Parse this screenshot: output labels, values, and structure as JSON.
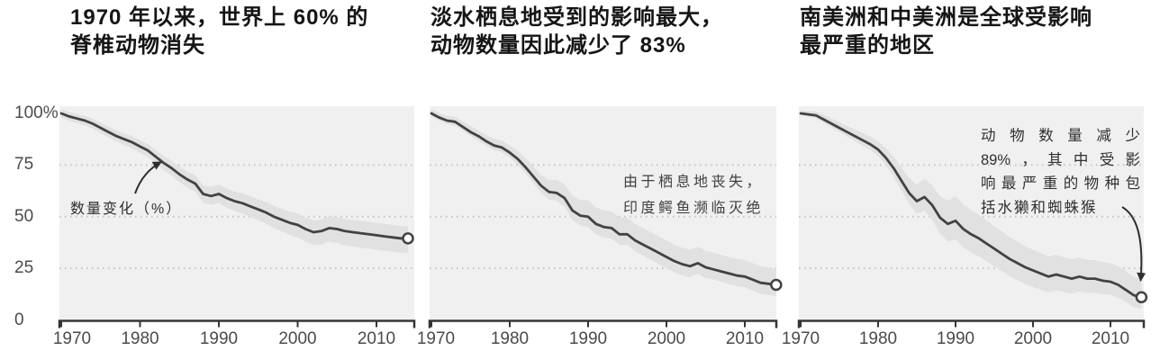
{
  "colors": {
    "plot_bg": "#f0f0f0",
    "band": "#e1e1e1",
    "line": "#424242",
    "grid": "#c3c3c3",
    "axis": "#353535",
    "title_text": "#151515",
    "label_text": "#4b4b4b",
    "annotation_text": "#2f2f2f",
    "endpoint_fill": "#ffffff"
  },
  "y_axis": {
    "tick_labels": [
      "100%",
      "75",
      "50",
      "25",
      "0"
    ],
    "tick_values": [
      100,
      75,
      50,
      25,
      0
    ]
  },
  "x_axis": {
    "tick_labels": [
      "1970",
      "1980",
      "1990",
      "2000",
      "2010"
    ],
    "tick_values": [
      1970,
      1980,
      1990,
      2000,
      2010
    ]
  },
  "chart_data": [
    {
      "type": "line",
      "title_line1": "1970 年以来，世界上 60% 的",
      "title_line2": "脊椎动物消失",
      "decline_pct": 60,
      "end_index_pct": 39.5,
      "ylim": [
        0,
        100
      ],
      "x_range": [
        1970,
        2014
      ],
      "grid": "dotted",
      "annotation_lines": [
        "数量变化（%）"
      ],
      "years": [
        1970,
        1971,
        1972,
        1973,
        1974,
        1975,
        1976,
        1977,
        1978,
        1979,
        1980,
        1981,
        1982,
        1983,
        1984,
        1985,
        1986,
        1987,
        1988,
        1989,
        1990,
        1991,
        1992,
        1993,
        1994,
        1995,
        1996,
        1997,
        1998,
        1999,
        2000,
        2001,
        2002,
        2003,
        2004,
        2005,
        2006,
        2007,
        2008,
        2009,
        2010,
        2011,
        2012,
        2013,
        2014
      ],
      "values": [
        100,
        98.5,
        97.5,
        96.5,
        95,
        93,
        91,
        89,
        87.5,
        86,
        84,
        82,
        79,
        76,
        73.5,
        70.5,
        68,
        66,
        61,
        60,
        61,
        59,
        57.5,
        56.5,
        55,
        53.5,
        52,
        50,
        48.5,
        47,
        46,
        44,
        42.5,
        43,
        44.5,
        44,
        43,
        42.5,
        42,
        41.5,
        41,
        40.5,
        40,
        39.5,
        39.5
      ],
      "band": {
        "years": [
          1970,
          1980,
          1990,
          2000,
          2007,
          2014
        ],
        "upper_offset": [
          2,
          3,
          4.5,
          5.5,
          6,
          6
        ],
        "lower_offset": [
          2,
          3,
          4.5,
          6,
          7,
          7
        ]
      }
    },
    {
      "type": "line",
      "title_line1": "淡水栖息地受到的影响最大，",
      "title_line2": "动物数量因此减少了 83%",
      "decline_pct": 83,
      "end_index_pct": 17,
      "ylim": [
        0,
        100
      ],
      "x_range": [
        1970,
        2014
      ],
      "grid": "dotted",
      "annotation_lines": [
        "由于栖息地丧失，",
        "印度鳄鱼濒临灭绝"
      ],
      "years": [
        1970,
        1971,
        1972,
        1973,
        1974,
        1975,
        1976,
        1977,
        1978,
        1979,
        1980,
        1981,
        1982,
        1983,
        1984,
        1985,
        1986,
        1987,
        1988,
        1989,
        1990,
        1991,
        1992,
        1993,
        1994,
        1995,
        1996,
        1997,
        1998,
        1999,
        2000,
        2001,
        2002,
        2003,
        2004,
        2005,
        2006,
        2007,
        2008,
        2009,
        2010,
        2011,
        2012,
        2013,
        2014
      ],
      "values": [
        100,
        98,
        96.5,
        96,
        93.5,
        91,
        89,
        86.5,
        84.5,
        83.5,
        81,
        78,
        74,
        69.5,
        65,
        62,
        61.5,
        59,
        53,
        50.5,
        50,
        46.5,
        45,
        44.5,
        41.5,
        41.5,
        38.5,
        36.5,
        34.5,
        32.5,
        30.5,
        28.5,
        27,
        26,
        27.5,
        25.5,
        24.5,
        23.5,
        22.5,
        21.5,
        21,
        19.5,
        18,
        17.5,
        17
      ],
      "band": {
        "years": [
          1970,
          1980,
          1990,
          2000,
          2007,
          2014
        ],
        "upper_offset": [
          2,
          3.5,
          8,
          8,
          8,
          8
        ],
        "lower_offset": [
          1.5,
          2.5,
          5,
          5.5,
          5,
          5.5
        ]
      }
    },
    {
      "type": "line",
      "title_line1": "南美洲和中美洲是全球受影响",
      "title_line2": "最严重的地区",
      "decline_pct": 89,
      "end_index_pct": 11,
      "ylim": [
        0,
        100
      ],
      "x_range": [
        1970,
        2014
      ],
      "grid": "dotted",
      "annotation_lines": [
        "动物数量减少",
        "89%，其中受影",
        "响最严重的物种包",
        "括水獭和蜘蛛猴"
      ],
      "years": [
        1970,
        1971,
        1972,
        1973,
        1974,
        1975,
        1976,
        1977,
        1978,
        1979,
        1980,
        1981,
        1982,
        1983,
        1984,
        1985,
        1986,
        1987,
        1988,
        1989,
        1990,
        1991,
        1992,
        1993,
        1994,
        1995,
        1996,
        1997,
        1998,
        1999,
        2000,
        2001,
        2002,
        2003,
        2004,
        2005,
        2006,
        2007,
        2008,
        2009,
        2010,
        2011,
        2012,
        2013,
        2014
      ],
      "values": [
        100,
        99.5,
        99,
        97,
        95,
        93,
        91,
        89,
        87,
        85,
        82.5,
        78.5,
        73.5,
        67.5,
        61.5,
        57.5,
        59.5,
        55.5,
        49.5,
        46.5,
        48,
        44,
        41.5,
        39.5,
        37,
        34.5,
        32,
        29.5,
        27.5,
        25.5,
        24,
        22.5,
        21,
        22,
        21,
        20,
        21,
        20,
        20,
        19,
        18.5,
        17,
        14.5,
        12,
        11
      ],
      "band": {
        "years": [
          1970,
          1980,
          1990,
          2000,
          2007,
          2014
        ],
        "upper_offset": [
          1.5,
          4,
          12,
          10,
          9,
          9
        ],
        "lower_offset": [
          1,
          3,
          9,
          8,
          7,
          5.5
        ]
      }
    }
  ]
}
